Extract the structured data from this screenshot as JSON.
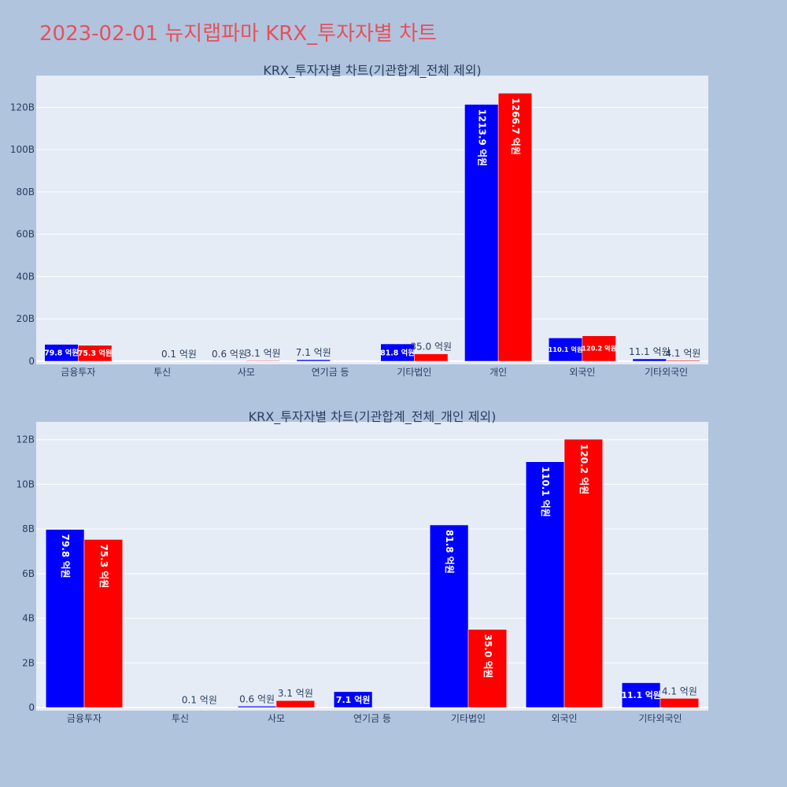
{
  "title": "2023-02-01 뉴지랩파마 KRX_투자자별 차트",
  "colors": {
    "background": "#b0c4de",
    "plot_bg": "#e5ecf6",
    "title": "#e8505b",
    "series_a": "#0000ff",
    "series_b": "#ff0000"
  },
  "chart_data": [
    {
      "type": "bar",
      "title": "KRX_투자자별 차트(기관합계_전체 제외)",
      "categories": [
        "금융투자",
        "투신",
        "사모",
        "연기금 등",
        "기타법인",
        "개인",
        "외국인",
        "기타외국인"
      ],
      "series": [
        {
          "color": "#0000ff",
          "values": [
            7980000000,
            0,
            60000000,
            710000000,
            8180000000,
            121390000000,
            11010000000,
            1110000000
          ],
          "labels": [
            "79.8 억원",
            "",
            "0.6 억원",
            "7.1 억원",
            "81.8 억원",
            "1213.9 억원",
            "110.1 억원",
            "11.1 억원"
          ]
        },
        {
          "color": "#ff0000",
          "values": [
            7530000000,
            10000000,
            310000000,
            0,
            3500000000,
            126670000000,
            12020000000,
            410000000
          ],
          "labels": [
            "75.3 억원",
            "0.1 억원",
            "3.1 억원",
            "",
            "35.0 억원",
            "1266.7 억원",
            "120.2 억원",
            "4.1 억원"
          ]
        }
      ],
      "ylim": [
        0,
        135000000000
      ],
      "yticks": [
        {
          "value": 0,
          "label": "0"
        },
        {
          "value": 20000000000,
          "label": "20B"
        },
        {
          "value": 40000000000,
          "label": "40B"
        },
        {
          "value": 60000000000,
          "label": "60B"
        },
        {
          "value": 80000000000,
          "label": "80B"
        },
        {
          "value": 100000000000,
          "label": "100B"
        },
        {
          "value": 120000000000,
          "label": "120B"
        }
      ],
      "grid": true
    },
    {
      "type": "bar",
      "title": "KRX_투자자별 차트(기관합계_전체_개인 제외)",
      "categories": [
        "금융투자",
        "투신",
        "사모",
        "연기금 등",
        "기타법인",
        "외국인",
        "기타외국인"
      ],
      "series": [
        {
          "color": "#0000ff",
          "values": [
            7980000000,
            0,
            60000000,
            710000000,
            8180000000,
            11010000000,
            1110000000
          ],
          "labels": [
            "79.8 억원",
            "",
            "0.6 억원",
            "7.1 억원",
            "81.8 억원",
            "110.1 억원",
            "11.1 억원"
          ]
        },
        {
          "color": "#ff0000",
          "values": [
            7530000000,
            10000000,
            310000000,
            0,
            3500000000,
            12020000000,
            410000000
          ],
          "labels": [
            "75.3 억원",
            "0.1 억원",
            "3.1 억원",
            "",
            "35.0 억원",
            "120.2 억원",
            "4.1 억원"
          ]
        }
      ],
      "ylim": [
        0,
        12800000000
      ],
      "yticks": [
        {
          "value": 0,
          "label": "0"
        },
        {
          "value": 2000000000,
          "label": "2B"
        },
        {
          "value": 4000000000,
          "label": "4B"
        },
        {
          "value": 6000000000,
          "label": "6B"
        },
        {
          "value": 8000000000,
          "label": "8B"
        },
        {
          "value": 10000000000,
          "label": "10B"
        },
        {
          "value": 12000000000,
          "label": "12B"
        }
      ],
      "grid": true
    }
  ]
}
